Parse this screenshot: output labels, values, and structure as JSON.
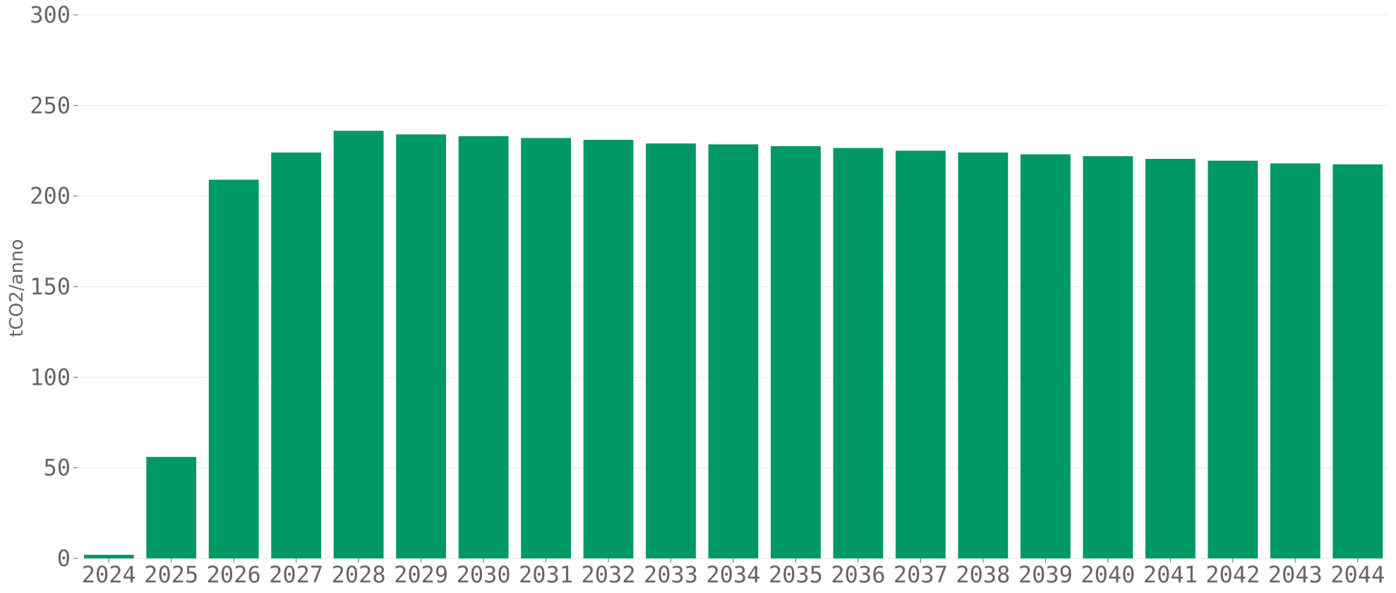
{
  "chart_data": {
    "type": "bar",
    "title": "",
    "xlabel": "",
    "ylabel": "tCO2/anno",
    "ylim": [
      0,
      300
    ],
    "yticks": [
      0,
      50,
      100,
      150,
      200,
      250,
      300
    ],
    "grid": true,
    "legend": "none",
    "colors": {
      "bar": "#009863",
      "grid": "#e6e6e6",
      "text": "#666666"
    },
    "categories": [
      "2024",
      "2025",
      "2026",
      "2027",
      "2028",
      "2029",
      "2030",
      "2031",
      "2032",
      "2033",
      "2034",
      "2035",
      "2036",
      "2037",
      "2038",
      "2039",
      "2040",
      "2041",
      "2042",
      "2043",
      "2044"
    ],
    "values": [
      2,
      56,
      209,
      224,
      236,
      234,
      233,
      232,
      231,
      229,
      228.5,
      227.5,
      226.5,
      225,
      224,
      223,
      222,
      220.5,
      219.5,
      218,
      217.5
    ]
  }
}
